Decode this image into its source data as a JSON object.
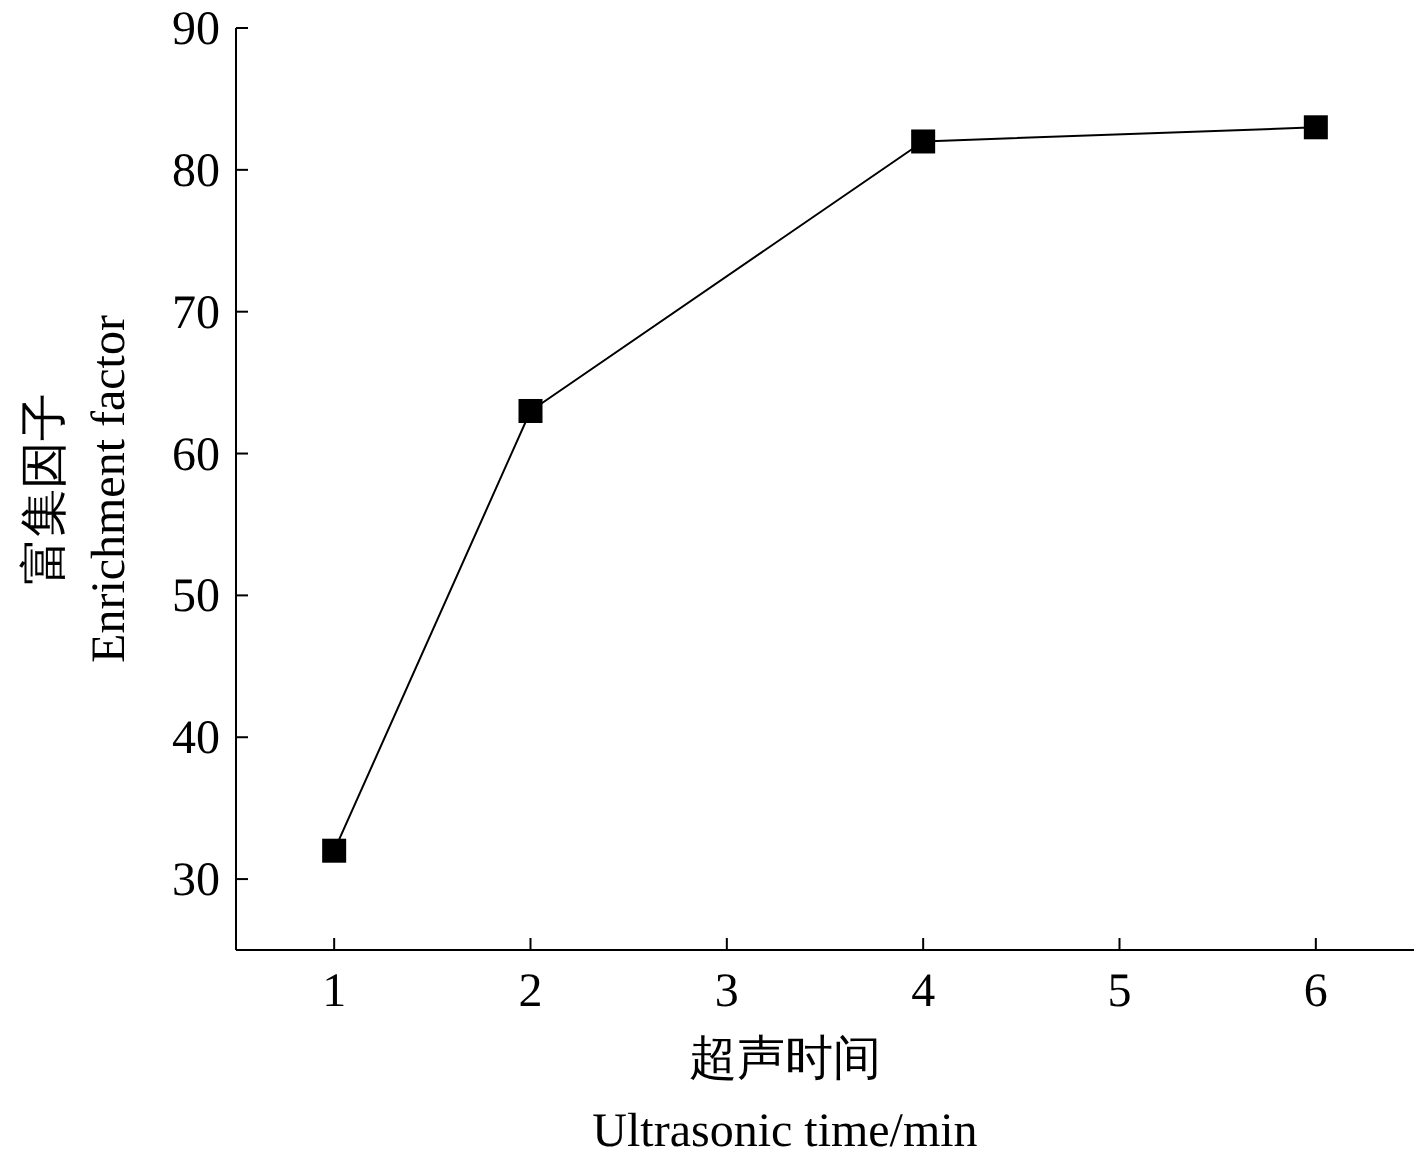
{
  "chart_data": {
    "type": "line",
    "xlabel": "超声时间\nUltrasonic time/min",
    "ylabel": "富集因子\nEnrichment factor",
    "xlim": [
      0.5,
      6.5
    ],
    "ylim": [
      25,
      90
    ],
    "xticks": [
      1,
      2,
      3,
      4,
      5,
      6
    ],
    "yticks": [
      30,
      40,
      50,
      60,
      70,
      80,
      90
    ],
    "marker": "square",
    "line_style": "solid",
    "series": [
      {
        "color": "#000000",
        "x": [
          1,
          2,
          4,
          6
        ],
        "values": [
          32,
          63,
          82,
          83
        ]
      }
    ]
  }
}
